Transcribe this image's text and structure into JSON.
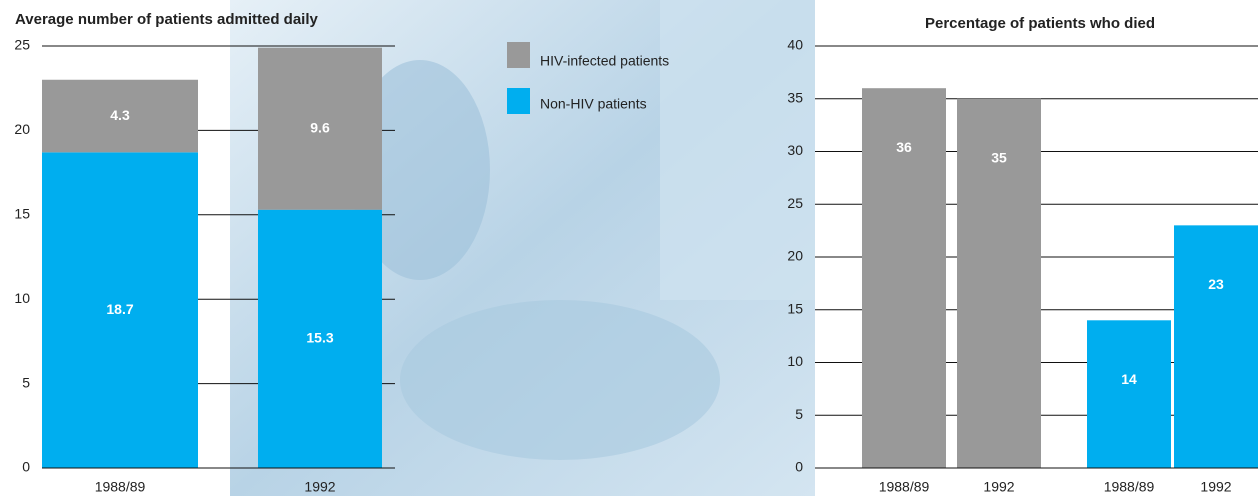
{
  "chart_data": [
    {
      "type": "bar",
      "stacked": true,
      "title": "Average number of patients admitted daily",
      "categories": [
        "1988/89",
        "1992"
      ],
      "series": [
        {
          "name": "Non-HIV patients",
          "color": "#00aeef",
          "values": [
            18.7,
            15.3
          ]
        },
        {
          "name": "HIV-infected patients",
          "color": "#999999",
          "values": [
            4.3,
            9.6
          ]
        }
      ],
      "ylim": [
        0,
        25
      ],
      "yticks": [
        0,
        5,
        10,
        15,
        20,
        25
      ],
      "grid": true
    },
    {
      "type": "bar",
      "stacked": false,
      "title": "Percentage of patients who died",
      "categories": [
        "1988/89",
        "1992",
        "1988/89",
        "1992"
      ],
      "series": [
        {
          "color": "#999999",
          "values": [
            36,
            35,
            null,
            null
          ]
        },
        {
          "color": "#00aeef",
          "values": [
            null,
            null,
            14,
            23
          ]
        }
      ],
      "ylim": [
        0,
        40
      ],
      "yticks": [
        0,
        5,
        10,
        15,
        20,
        25,
        30,
        35,
        40
      ],
      "grid": true
    }
  ]
}
